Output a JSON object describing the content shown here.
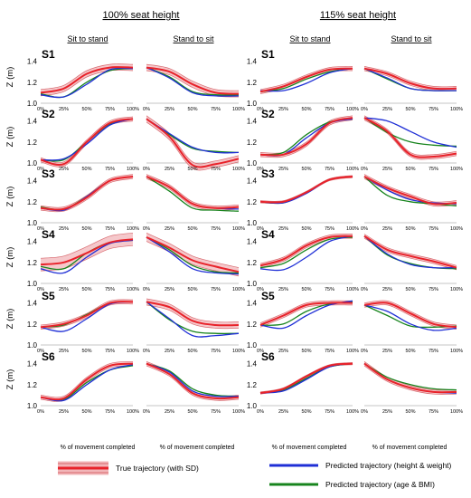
{
  "headers": {
    "left": "100% seat height",
    "right": "115% seat height",
    "sit_to_stand": "Sit to stand",
    "stand_to_sit": "Stand to sit"
  },
  "y_axis_label": "Z (m)",
  "x_axis_label": "% of movement completed",
  "y_ticks": [
    "1.0",
    "1.2",
    "1.4"
  ],
  "x_ticks": [
    "0%",
    "25%",
    "50%",
    "75%",
    "100%"
  ],
  "legend": {
    "true": "True trajectory (with SD)",
    "hw": "Predicted trajectory (height & weight)",
    "ab": "Predicted trajectory (age & BMI)"
  },
  "colors": {
    "true_line": "#e8222a",
    "true_band": "#f2b6b9",
    "hw": "#1f2fd6",
    "ab": "#17841d"
  },
  "chart_data": {
    "type": "line",
    "ylim": [
      1.0,
      1.5
    ],
    "xlim": [
      0,
      100
    ],
    "x": [
      0,
      25,
      50,
      75,
      100
    ],
    "subjects": [
      {
        "label": "S1",
        "panels": [
          {
            "true": [
              1.1,
              1.14,
              1.28,
              1.34,
              1.34
            ],
            "sd": 0.03,
            "hw": [
              1.08,
              1.06,
              1.18,
              1.32,
              1.33
            ],
            "ab": [
              1.09,
              1.06,
              1.2,
              1.31,
              1.33
            ]
          },
          {
            "true": [
              1.34,
              1.3,
              1.18,
              1.1,
              1.09
            ],
            "sd": 0.03,
            "hw": [
              1.34,
              1.24,
              1.1,
              1.07,
              1.07
            ],
            "ab": [
              1.34,
              1.25,
              1.11,
              1.08,
              1.08
            ]
          },
          {
            "true": [
              1.11,
              1.16,
              1.25,
              1.32,
              1.33
            ],
            "sd": 0.02,
            "hw": [
              1.12,
              1.12,
              1.19,
              1.29,
              1.33
            ],
            "ab": [
              1.11,
              1.14,
              1.23,
              1.3,
              1.33
            ]
          },
          {
            "true": [
              1.33,
              1.28,
              1.19,
              1.14,
              1.14
            ],
            "sd": 0.02,
            "hw": [
              1.33,
              1.24,
              1.14,
              1.12,
              1.12
            ],
            "ab": [
              1.33,
              1.23,
              1.14,
              1.12,
              1.12
            ]
          }
        ]
      },
      {
        "label": "S2",
        "panels": [
          {
            "true": [
              1.03,
              0.99,
              1.2,
              1.38,
              1.42
            ],
            "sd": 0.02,
            "hw": [
              1.03,
              1.04,
              1.18,
              1.36,
              1.42
            ],
            "ab": [
              1.03,
              1.03,
              1.2,
              1.37,
              1.42
            ]
          },
          {
            "true": [
              1.42,
              1.25,
              0.98,
              0.99,
              1.04
            ],
            "sd": 0.03,
            "hw": [
              1.42,
              1.28,
              1.15,
              1.1,
              1.1
            ],
            "ab": [
              1.42,
              1.27,
              1.14,
              1.11,
              1.1
            ]
          },
          {
            "true": [
              1.08,
              1.08,
              1.18,
              1.38,
              1.43
            ],
            "sd": 0.02,
            "hw": [
              1.08,
              1.08,
              1.24,
              1.38,
              1.42
            ],
            "ab": [
              1.08,
              1.1,
              1.27,
              1.39,
              1.42
            ]
          },
          {
            "true": [
              1.43,
              1.3,
              1.08,
              1.06,
              1.09
            ],
            "sd": 0.02,
            "hw": [
              1.43,
              1.4,
              1.3,
              1.2,
              1.15
            ],
            "ab": [
              1.43,
              1.29,
              1.2,
              1.17,
              1.16
            ]
          }
        ]
      },
      {
        "label": "S3",
        "panels": [
          {
            "true": [
              1.14,
              1.13,
              1.24,
              1.4,
              1.44
            ],
            "sd": 0.02,
            "hw": [
              1.14,
              1.12,
              1.25,
              1.4,
              1.44
            ],
            "ab": [
              1.15,
              1.13,
              1.25,
              1.4,
              1.44
            ]
          },
          {
            "true": [
              1.44,
              1.34,
              1.18,
              1.14,
              1.15
            ],
            "sd": 0.02,
            "hw": [
              1.44,
              1.34,
              1.18,
              1.14,
              1.13
            ],
            "ab": [
              1.44,
              1.3,
              1.14,
              1.12,
              1.11
            ]
          },
          {
            "true": [
              1.2,
              1.2,
              1.29,
              1.41,
              1.44
            ],
            "sd": 0.01,
            "hw": [
              1.2,
              1.19,
              1.28,
              1.41,
              1.44
            ],
            "ab": [
              1.2,
              1.19,
              1.29,
              1.41,
              1.44
            ]
          },
          {
            "true": [
              1.44,
              1.33,
              1.25,
              1.18,
              1.19
            ],
            "sd": 0.02,
            "hw": [
              1.44,
              1.31,
              1.22,
              1.19,
              1.18
            ],
            "ab": [
              1.44,
              1.26,
              1.2,
              1.18,
              1.16
            ]
          }
        ]
      },
      {
        "label": "S4",
        "panels": [
          {
            "true": [
              1.18,
              1.2,
              1.29,
              1.39,
              1.42
            ],
            "sd": 0.06,
            "hw": [
              1.14,
              1.1,
              1.25,
              1.38,
              1.41
            ],
            "ab": [
              1.16,
              1.14,
              1.29,
              1.39,
              1.41
            ]
          },
          {
            "true": [
              1.44,
              1.34,
              1.22,
              1.16,
              1.11
            ],
            "sd": 0.04,
            "hw": [
              1.44,
              1.3,
              1.14,
              1.1,
              1.09
            ],
            "ab": [
              1.44,
              1.32,
              1.17,
              1.11,
              1.1
            ]
          },
          {
            "true": [
              1.17,
              1.23,
              1.36,
              1.44,
              1.45
            ],
            "sd": 0.02,
            "hw": [
              1.14,
              1.13,
              1.25,
              1.4,
              1.45
            ],
            "ab": [
              1.15,
              1.19,
              1.32,
              1.42,
              1.44
            ]
          },
          {
            "true": [
              1.45,
              1.32,
              1.26,
              1.21,
              1.15
            ],
            "sd": 0.02,
            "hw": [
              1.45,
              1.28,
              1.18,
              1.15,
              1.15
            ],
            "ab": [
              1.45,
              1.27,
              1.19,
              1.15,
              1.14
            ]
          }
        ]
      },
      {
        "label": "S5",
        "panels": [
          {
            "true": [
              1.17,
              1.2,
              1.28,
              1.4,
              1.41
            ],
            "sd": 0.02,
            "hw": [
              1.17,
              1.13,
              1.25,
              1.39,
              1.41
            ],
            "ab": [
              1.17,
              1.19,
              1.29,
              1.4,
              1.41
            ]
          },
          {
            "true": [
              1.41,
              1.36,
              1.23,
              1.19,
              1.19
            ],
            "sd": 0.03,
            "hw": [
              1.41,
              1.25,
              1.09,
              1.09,
              1.11
            ],
            "ab": [
              1.41,
              1.24,
              1.13,
              1.11,
              1.11
            ]
          },
          {
            "true": [
              1.19,
              1.28,
              1.38,
              1.4,
              1.4
            ],
            "sd": 0.02,
            "hw": [
              1.19,
              1.16,
              1.28,
              1.38,
              1.42
            ],
            "ab": [
              1.19,
              1.2,
              1.32,
              1.39,
              1.41
            ]
          },
          {
            "true": [
              1.38,
              1.4,
              1.3,
              1.2,
              1.17
            ],
            "sd": 0.02,
            "hw": [
              1.38,
              1.32,
              1.2,
              1.14,
              1.16
            ],
            "ab": [
              1.38,
              1.28,
              1.18,
              1.17,
              1.18
            ]
          }
        ]
      },
      {
        "label": "S6",
        "panels": [
          {
            "true": [
              1.08,
              1.07,
              1.25,
              1.38,
              1.4
            ],
            "sd": 0.02,
            "hw": [
              1.08,
              1.05,
              1.2,
              1.34,
              1.39
            ],
            "ab": [
              1.08,
              1.06,
              1.22,
              1.34,
              1.38
            ]
          },
          {
            "true": [
              1.4,
              1.3,
              1.12,
              1.07,
              1.08
            ],
            "sd": 0.02,
            "hw": [
              1.4,
              1.32,
              1.14,
              1.09,
              1.09
            ],
            "ab": [
              1.4,
              1.33,
              1.16,
              1.1,
              1.09
            ]
          },
          {
            "true": [
              1.12,
              1.16,
              1.28,
              1.38,
              1.4
            ],
            "sd": 0.01,
            "hw": [
              1.12,
              1.14,
              1.25,
              1.37,
              1.4
            ],
            "ab": [
              1.12,
              1.15,
              1.26,
              1.37,
              1.4
            ]
          },
          {
            "true": [
              1.4,
              1.25,
              1.17,
              1.13,
              1.13
            ],
            "sd": 0.02,
            "hw": [
              1.4,
              1.25,
              1.17,
              1.13,
              1.12
            ],
            "ab": [
              1.4,
              1.27,
              1.2,
              1.16,
              1.15
            ]
          }
        ]
      }
    ]
  }
}
